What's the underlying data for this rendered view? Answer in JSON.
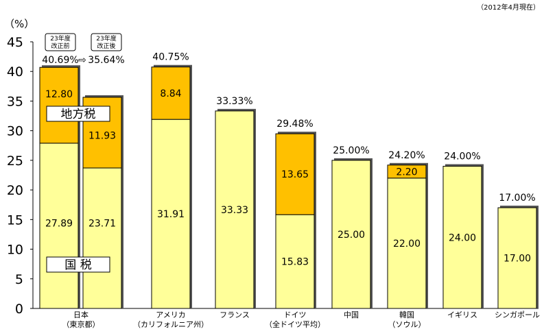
{
  "note": "（2012年4月現在）",
  "unit_label": "（%）",
  "colors": {
    "national": "#ffff99",
    "local": "#ffc000",
    "outline": "#000000"
  },
  "labels": {
    "local_tax": "地方税",
    "national_tax": "国 税",
    "before_revision": "23年度\n改正前",
    "after_revision": "23年度\n改正後",
    "arrow": "⇨"
  },
  "chart_data": {
    "type": "bar",
    "stacked": true,
    "ylim": [
      0,
      45
    ],
    "yticks": [
      0,
      5,
      10,
      15,
      20,
      25,
      30,
      35,
      40,
      45
    ],
    "grid": false,
    "categories": [
      "日本\n（東京都）",
      "アメリカ\n（カリフォルニア州）",
      "フランス",
      "ドイツ\n（全ドイツ平均）",
      "中国",
      "韓国\n（ソウル）",
      "イギリス",
      "シンガポール"
    ],
    "bars": [
      {
        "category": 0,
        "national": 27.89,
        "local": 12.8,
        "national_label": "27.89",
        "local_label": "12.80",
        "total_label": "40.69%"
      },
      {
        "category": 0,
        "national": 23.71,
        "local": 11.93,
        "national_label": "23.71",
        "local_label": "11.93",
        "total_label": "35.64%"
      },
      {
        "category": 1,
        "national": 31.91,
        "local": 8.84,
        "national_label": "31.91",
        "local_label": "8.84",
        "total_label": "40.75%"
      },
      {
        "category": 2,
        "national": 33.33,
        "local": 0,
        "national_label": "33.33",
        "local_label": "",
        "total_label": "33.33%"
      },
      {
        "category": 3,
        "national": 15.83,
        "local": 13.65,
        "national_label": "15.83",
        "local_label": "13.65",
        "total_label": "29.48%"
      },
      {
        "category": 4,
        "national": 25.0,
        "local": 0,
        "national_label": "25.00",
        "local_label": "",
        "total_label": "25.00%"
      },
      {
        "category": 5,
        "national": 22.0,
        "local": 2.2,
        "national_label": "22.00",
        "local_label": "2.20",
        "total_label": "24.20%"
      },
      {
        "category": 6,
        "national": 24.0,
        "local": 0,
        "national_label": "24.00",
        "local_label": "",
        "total_label": "24.00%"
      },
      {
        "category": 7,
        "national": 17.0,
        "local": 0,
        "national_label": "17.00",
        "local_label": "",
        "total_label": "17.00%"
      }
    ]
  }
}
